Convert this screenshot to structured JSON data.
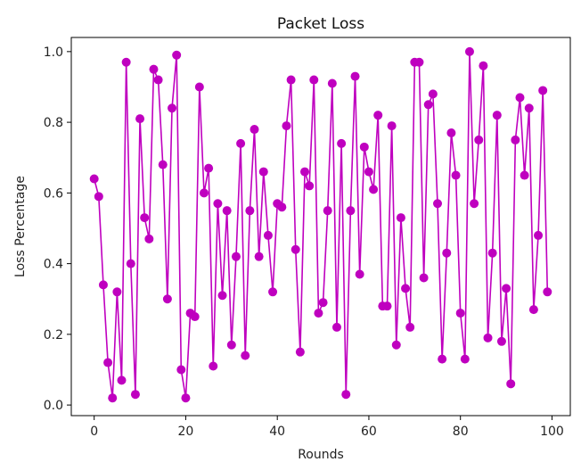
{
  "chart_data": {
    "type": "line",
    "title": "Packet Loss",
    "xlabel": "Rounds",
    "ylabel": "Loss Percentage",
    "xlim": [
      -5,
      104
    ],
    "ylim": [
      -0.03,
      1.04
    ],
    "xticks": [
      0,
      20,
      40,
      60,
      80,
      100
    ],
    "yticks": [
      0.0,
      0.2,
      0.4,
      0.6,
      0.8,
      1.0
    ],
    "xtick_labels": [
      "0",
      "20",
      "40",
      "60",
      "80",
      "100"
    ],
    "ytick_labels": [
      "0.0",
      "0.2",
      "0.4",
      "0.6",
      "0.8",
      "1.0"
    ],
    "grid": false,
    "legend": "none",
    "color": "#bf00bf",
    "marker": "circle",
    "series": [
      {
        "x": [
          0,
          1,
          2,
          3,
          4,
          5,
          6,
          7,
          8,
          9,
          10,
          11,
          12,
          13,
          14,
          15,
          16,
          17,
          18,
          19,
          20,
          21,
          22,
          23,
          24,
          25,
          26,
          27,
          28,
          29,
          30,
          31,
          32,
          33,
          34,
          35,
          36,
          37,
          38,
          39,
          40,
          41,
          42,
          43,
          44,
          45,
          46,
          47,
          48,
          49,
          50,
          51,
          52,
          53,
          54,
          55,
          56,
          57,
          58,
          59,
          60,
          61,
          62,
          63,
          64,
          65,
          66,
          67,
          68,
          69,
          70,
          71,
          72,
          73,
          74,
          75,
          76,
          77,
          78,
          79,
          80,
          81,
          82,
          83,
          84,
          85,
          86,
          87,
          88,
          89,
          90,
          91,
          92,
          93,
          94,
          95,
          96,
          97,
          98,
          99
        ],
        "values": [
          0.64,
          0.59,
          0.34,
          0.12,
          0.02,
          0.32,
          0.07,
          0.97,
          0.4,
          0.03,
          0.81,
          0.53,
          0.47,
          0.95,
          0.92,
          0.68,
          0.3,
          0.84,
          0.99,
          0.1,
          0.02,
          0.26,
          0.25,
          0.9,
          0.6,
          0.67,
          0.11,
          0.57,
          0.31,
          0.55,
          0.17,
          0.42,
          0.74,
          0.14,
          0.55,
          0.78,
          0.42,
          0.66,
          0.48,
          0.32,
          0.57,
          0.56,
          0.79,
          0.92,
          0.44,
          0.15,
          0.66,
          0.62,
          0.92,
          0.26,
          0.29,
          0.55,
          0.91,
          0.22,
          0.74,
          0.03,
          0.55,
          0.93,
          0.37,
          0.73,
          0.66,
          0.61,
          0.82,
          0.28,
          0.28,
          0.79,
          0.17,
          0.53,
          0.33,
          0.22,
          0.97,
          0.97,
          0.36,
          0.85,
          0.88,
          0.57,
          0.13,
          0.43,
          0.77,
          0.65,
          0.26,
          0.13,
          1.0,
          0.57,
          0.75,
          0.96,
          0.19,
          0.43,
          0.82,
          0.18,
          0.33,
          0.06,
          0.75,
          0.87,
          0.65,
          0.84,
          0.27,
          0.48,
          0.89,
          0.32
        ]
      }
    ]
  }
}
